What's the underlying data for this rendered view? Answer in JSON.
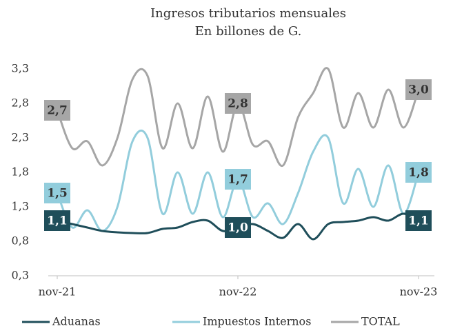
{
  "chart_data": {
    "type": "line",
    "title": "Ingresos tributarios mensuales",
    "subtitle": "En billones de G.",
    "categories": [
      "nov-21",
      null,
      null,
      null,
      null,
      null,
      null,
      null,
      null,
      null,
      null,
      null,
      "nov-22",
      null,
      null,
      null,
      null,
      null,
      null,
      null,
      null,
      null,
      null,
      null,
      "nov-23"
    ],
    "series": [
      {
        "name": "Aduanas",
        "color": "#1f4e5a",
        "values": [
          1.1,
          1.05,
          1.0,
          0.95,
          0.93,
          0.92,
          0.92,
          0.98,
          1.0,
          1.08,
          1.1,
          0.95,
          1.0,
          1.05,
          0.95,
          0.85,
          1.05,
          0.83,
          1.05,
          1.08,
          1.1,
          1.15,
          1.1,
          1.2,
          1.1
        ],
        "value_labels": [
          "1,1",
          null,
          null,
          null,
          null,
          null,
          null,
          null,
          null,
          null,
          null,
          null,
          "1,0",
          null,
          null,
          null,
          null,
          null,
          null,
          null,
          null,
          null,
          null,
          null,
          "1,1"
        ]
      },
      {
        "name": "Impuestos Internos",
        "color": "#92cddc",
        "values": [
          1.5,
          1.0,
          1.25,
          0.95,
          1.3,
          2.25,
          2.3,
          1.2,
          1.8,
          1.2,
          1.8,
          1.15,
          1.7,
          1.15,
          1.35,
          1.05,
          1.5,
          2.1,
          2.3,
          1.35,
          1.85,
          1.3,
          1.9,
          1.2,
          1.8
        ],
        "value_labels": [
          "1,5",
          null,
          null,
          null,
          null,
          null,
          null,
          null,
          null,
          null,
          null,
          null,
          "1,7",
          null,
          null,
          null,
          null,
          null,
          null,
          null,
          null,
          null,
          null,
          null,
          "1,8"
        ]
      },
      {
        "name": "TOTAL",
        "color": "#a6a6a6",
        "values": [
          2.7,
          2.15,
          2.25,
          1.9,
          2.3,
          3.15,
          3.2,
          2.15,
          2.8,
          2.15,
          2.9,
          2.1,
          2.8,
          2.2,
          2.25,
          1.9,
          2.6,
          2.95,
          3.3,
          2.45,
          2.95,
          2.45,
          3.0,
          2.45,
          3.0
        ],
        "value_labels": [
          "2,7",
          null,
          null,
          null,
          null,
          null,
          null,
          null,
          null,
          null,
          null,
          null,
          "2,8",
          null,
          null,
          null,
          null,
          null,
          null,
          null,
          null,
          null,
          null,
          null,
          "3,0"
        ]
      }
    ],
    "ylim": [
      0.3,
      3.3
    ],
    "yticks": [
      {
        "value": 0.3,
        "label": "0,3"
      },
      {
        "value": 0.8,
        "label": "0,8"
      },
      {
        "value": 1.3,
        "label": "1,3"
      },
      {
        "value": 1.8,
        "label": "1,8"
      },
      {
        "value": 2.3,
        "label": "2,3"
      },
      {
        "value": 2.8,
        "label": "2,8"
      },
      {
        "value": 3.3,
        "label": "3,3"
      }
    ],
    "grid": false,
    "legend": "bottom"
  }
}
